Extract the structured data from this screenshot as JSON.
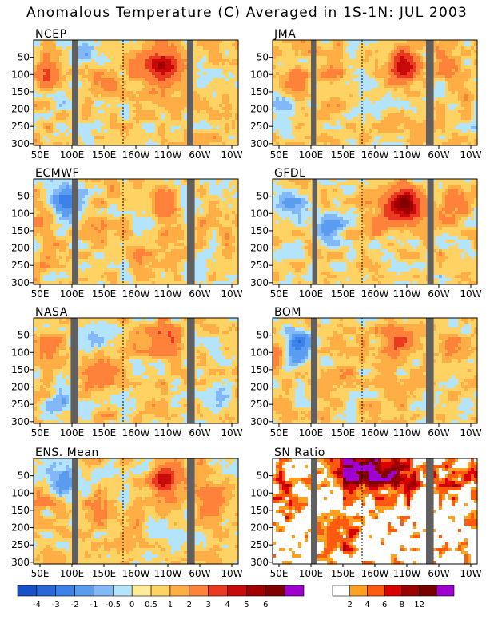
{
  "title": "Anomalous Temperature (C) Averaged in 1S-1N: JUL 2003",
  "colors": {
    "land_mask": "#606060",
    "background_white": "#ffffff",
    "dateline": "#000000"
  },
  "chart_data": [
    {
      "type": "heatmap",
      "title": "NCEP",
      "x_ticks": [
        "50E",
        "100E",
        "150E",
        "160W",
        "110W",
        "60W",
        "10W"
      ],
      "y_ticks": [
        "50",
        "100",
        "150",
        "200",
        "250",
        "300"
      ],
      "ylim": [
        300,
        0
      ],
      "y_inverted": true,
      "land_mask_lon": [
        [
          100,
          110
        ],
        [
          280,
          290
        ]
      ],
      "dateline_lon": 180,
      "features": [
        {
          "lon": 60,
          "depth": 90,
          "value": 2
        },
        {
          "lon": 140,
          "depth": 130,
          "value": 1
        },
        {
          "lon": 200,
          "depth": 80,
          "value": 1
        },
        {
          "lon": 240,
          "depth": 75,
          "value": 4
        },
        {
          "lon": 120,
          "depth": 40,
          "value": -1
        },
        {
          "lon": 155,
          "depth": 60,
          "value": -0.5
        }
      ]
    },
    {
      "type": "heatmap",
      "title": "JMA",
      "x_ticks": [
        "50E",
        "100E",
        "150E",
        "160W",
        "110W",
        "60W",
        "10W"
      ],
      "y_ticks": [
        "50",
        "100",
        "150",
        "200",
        "250",
        "300"
      ],
      "ylim": [
        300,
        0
      ],
      "y_inverted": true,
      "land_mask_lon": [
        [
          100,
          108
        ],
        [
          280,
          292
        ]
      ],
      "dateline_lon": 180,
      "features": [
        {
          "lon": 80,
          "depth": 110,
          "value": 1
        },
        {
          "lon": 245,
          "depth": 80,
          "value": 4
        },
        {
          "lon": 60,
          "depth": 180,
          "value": -1
        },
        {
          "lon": 140,
          "depth": 80,
          "value": 0.5
        },
        {
          "lon": 310,
          "depth": 60,
          "value": 1
        }
      ]
    },
    {
      "type": "heatmap",
      "title": "ECMWF",
      "x_ticks": [
        "50E",
        "100E",
        "150E",
        "160W",
        "110W",
        "60W",
        "10W"
      ],
      "y_ticks": [
        "50",
        "100",
        "150",
        "200",
        "250",
        "300"
      ],
      "ylim": [
        300,
        0
      ],
      "y_inverted": true,
      "land_mask_lon": [
        [
          100,
          110
        ],
        [
          280,
          292
        ]
      ],
      "dateline_lon": 180,
      "features": [
        {
          "lon": 90,
          "depth": 60,
          "value": -3
        },
        {
          "lon": 245,
          "depth": 65,
          "value": 2
        },
        {
          "lon": 60,
          "depth": 110,
          "value": 1
        },
        {
          "lon": 270,
          "depth": 60,
          "value": -1
        },
        {
          "lon": 150,
          "depth": 150,
          "value": 0.5
        },
        {
          "lon": 200,
          "depth": 200,
          "value": 0.5
        }
      ]
    },
    {
      "type": "heatmap",
      "title": "GFDL",
      "x_ticks": [
        "50E",
        "100E",
        "150E",
        "160W",
        "110W",
        "60W",
        "10W"
      ],
      "y_ticks": [
        "50",
        "100",
        "150",
        "200",
        "250",
        "300"
      ],
      "ylim": [
        300,
        0
      ],
      "y_inverted": true,
      "land_mask_lon": [
        [
          102,
          110
        ],
        [
          282,
          292
        ]
      ],
      "dateline_lon": 180,
      "features": [
        {
          "lon": 247,
          "depth": 70,
          "value": 5
        },
        {
          "lon": 70,
          "depth": 80,
          "value": -1
        },
        {
          "lon": 130,
          "depth": 140,
          "value": -2
        },
        {
          "lon": 215,
          "depth": 110,
          "value": 1
        },
        {
          "lon": 320,
          "depth": 70,
          "value": 1
        }
      ]
    },
    {
      "type": "heatmap",
      "title": "NASA",
      "x_ticks": [
        "50E",
        "100E",
        "150E",
        "160W",
        "110W",
        "60W",
        "10W"
      ],
      "y_ticks": [
        "50",
        "100",
        "150",
        "200",
        "250",
        "300"
      ],
      "ylim": [
        300,
        0
      ],
      "y_inverted": true,
      "land_mask_lon": [
        [
          98,
          110
        ],
        [
          280,
          292
        ]
      ],
      "dateline_lon": 180,
      "features": [
        {
          "lon": 245,
          "depth": 70,
          "value": 2
        },
        {
          "lon": 70,
          "depth": 80,
          "value": 1
        },
        {
          "lon": 130,
          "depth": 70,
          "value": -1
        },
        {
          "lon": 80,
          "depth": 250,
          "value": -1
        },
        {
          "lon": 330,
          "depth": 250,
          "value": -1
        },
        {
          "lon": 150,
          "depth": 160,
          "value": 1
        }
      ]
    },
    {
      "type": "heatmap",
      "title": "BOM",
      "x_ticks": [
        "50E",
        "100E",
        "150E",
        "160W",
        "110W",
        "60W",
        "10W"
      ],
      "y_ticks": [
        "50",
        "100",
        "150",
        "200",
        "250",
        "300"
      ],
      "ylim": [
        300,
        0
      ],
      "y_inverted": true,
      "land_mask_lon": [
        [
          100,
          110
        ],
        [
          280,
          292
        ]
      ],
      "dateline_lon": 180,
      "features": [
        {
          "lon": 80,
          "depth": 85,
          "value": -3
        },
        {
          "lon": 235,
          "depth": 70,
          "value": 2
        },
        {
          "lon": 45,
          "depth": 100,
          "value": 1
        },
        {
          "lon": 320,
          "depth": 110,
          "value": 1
        },
        {
          "lon": 150,
          "depth": 140,
          "value": 0.5
        }
      ]
    },
    {
      "type": "heatmap",
      "title": "ENS. Mean",
      "x_ticks": [
        "50E",
        "100E",
        "150E",
        "160W",
        "110W",
        "60W",
        "10W"
      ],
      "y_ticks": [
        "50",
        "100",
        "150",
        "200",
        "250",
        "300"
      ],
      "ylim": [
        300,
        0
      ],
      "y_inverted": true,
      "land_mask_lon": [
        [
          100,
          110
        ],
        [
          280,
          292
        ]
      ],
      "dateline_lon": 180,
      "features": [
        {
          "lon": 85,
          "depth": 70,
          "value": -2
        },
        {
          "lon": 245,
          "depth": 65,
          "value": 3
        },
        {
          "lon": 60,
          "depth": 100,
          "value": 1
        },
        {
          "lon": 150,
          "depth": 150,
          "value": 0.5
        },
        {
          "lon": 320,
          "depth": 110,
          "value": 1
        }
      ]
    },
    {
      "type": "heatmap",
      "title": "SN Ratio",
      "x_ticks": [
        "50E",
        "100E",
        "150E",
        "160W",
        "110W",
        "60W",
        "10W"
      ],
      "y_ticks": [
        "50",
        "100",
        "150",
        "200",
        "250",
        "300"
      ],
      "ylim": [
        300,
        0
      ],
      "y_inverted": true,
      "land_mask_lon": [
        [
          100,
          110
        ],
        [
          280,
          292
        ]
      ],
      "dateline_lon": 180,
      "features": [
        {
          "lon": 155,
          "depth": 30,
          "value": 12
        },
        {
          "lon": 210,
          "depth": 40,
          "value": 8
        },
        {
          "lon": 135,
          "depth": 230,
          "value": 6
        },
        {
          "lon": 60,
          "depth": 100,
          "value": 4
        },
        {
          "lon": 250,
          "depth": 60,
          "value": 4
        },
        {
          "lon": 330,
          "depth": 60,
          "value": 4
        }
      ]
    }
  ],
  "colorbars": [
    {
      "name": "anomaly",
      "labels": [
        "-4",
        "-3",
        "-2",
        "-1",
        "-0.5",
        "0",
        "0.5",
        "1",
        "2",
        "3",
        "4",
        "5",
        "6"
      ],
      "colors": [
        "#1850c8",
        "#2a68d8",
        "#3c82e8",
        "#5a9cf0",
        "#82b8f8",
        "#b4e4fc",
        "#ffec96",
        "#ffd264",
        "#ffae46",
        "#ff823a",
        "#ec3a22",
        "#c80a0a",
        "#a00000",
        "#800000",
        "#a000d0"
      ]
    },
    {
      "name": "sn_ratio",
      "labels": [
        "2",
        "4",
        "6",
        "8",
        "12"
      ],
      "colors": [
        "#ffffff",
        "#ffa020",
        "#ff5a10",
        "#d80000",
        "#9c0000",
        "#7a0000",
        "#a000d0"
      ]
    }
  ]
}
